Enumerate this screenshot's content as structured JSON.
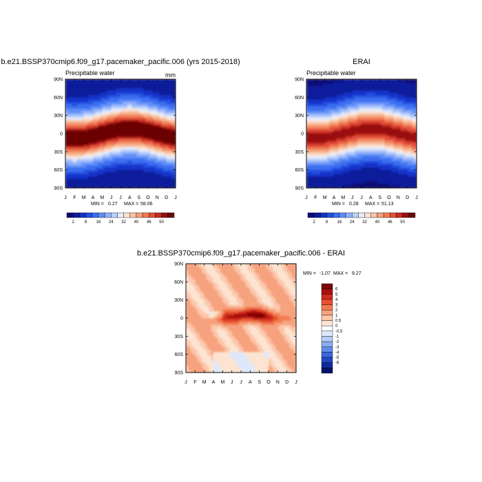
{
  "chart_data": [
    {
      "type": "heatmap",
      "title": "b.e21.BSSP370cmip6.f09_g17.pacemaker_pacific.006 (yrs 2015-2018)",
      "subtitle": "Precipitable water",
      "units": "mm",
      "x_ticks": [
        "J",
        "F",
        "M",
        "A",
        "M",
        "J",
        "J",
        "A",
        "S",
        "O",
        "N",
        "D",
        "J"
      ],
      "y_ticks": [
        "90N",
        "60N",
        "30N",
        "0",
        "30S",
        "60S",
        "90S"
      ],
      "min_label": "MIN =",
      "min_value": "0.27",
      "max_label": "MAX =",
      "max_value": "58.06",
      "colorbar_levels": [
        "2",
        "8",
        "16",
        "24",
        "32",
        "40",
        "46",
        "50"
      ],
      "ylim": [
        -90,
        90
      ]
    },
    {
      "type": "heatmap",
      "title": "ERAI",
      "subtitle": "Precipitable water",
      "x_ticks": [
        "J",
        "F",
        "M",
        "A",
        "M",
        "J",
        "J",
        "A",
        "S",
        "O",
        "N",
        "D",
        "J"
      ],
      "y_ticks": [
        "90N",
        "60N",
        "30N",
        "0",
        "30S",
        "60S",
        "90S"
      ],
      "min_label": "MIN =",
      "min_value": "0.28",
      "max_label": "MAX =",
      "max_value": "51.13",
      "colorbar_levels": [
        "2",
        "8",
        "16",
        "24",
        "32",
        "40",
        "46",
        "50"
      ],
      "ylim": [
        -90,
        90
      ]
    },
    {
      "type": "heatmap",
      "title": "b.e21.BSSP370cmip6.f09_g17.pacemaker_pacific.006 - ERAI",
      "x_ticks": [
        "J",
        "F",
        "M",
        "A",
        "M",
        "J",
        "J",
        "A",
        "S",
        "O",
        "N",
        "D",
        "J"
      ],
      "y_ticks": [
        "90N",
        "60N",
        "30N",
        "0",
        "30S",
        "60S",
        "90S"
      ],
      "min_label": "MIN =",
      "min_value": "-1.07",
      "max_label": "MAX =",
      "max_value": "9.27",
      "colorbar_levels": [
        "6",
        "5",
        "4",
        "3",
        "2",
        "1",
        "0.5",
        "0",
        "-0.5",
        "-1",
        "-2",
        "-3",
        "-4",
        "-5",
        "-6"
      ],
      "ylim": [
        -90,
        90
      ]
    }
  ],
  "colors": {
    "pw_scale": [
      "#0a0a78",
      "#0d1e9a",
      "#1533c8",
      "#2150e0",
      "#3c6ef0",
      "#5e8ef7",
      "#8fb0fb",
      "#bcd0fc",
      "#e4ecfc",
      "#fbe3d3",
      "#f9c3a6",
      "#f5a079",
      "#ef7b55",
      "#e3503a",
      "#c62c22",
      "#98100f",
      "#6a0606"
    ],
    "diff_scale": [
      "#7a0606",
      "#a80f0f",
      "#d02a1c",
      "#e8512f",
      "#f27a50",
      "#f7a27e",
      "#fbc8ab",
      "#fde4d2",
      "#ffffff",
      "#dde8fb",
      "#b4ccf7",
      "#8aaef1",
      "#5f8de8",
      "#3a68dc",
      "#2147c2",
      "#0e2a98",
      "#08146a"
    ]
  }
}
